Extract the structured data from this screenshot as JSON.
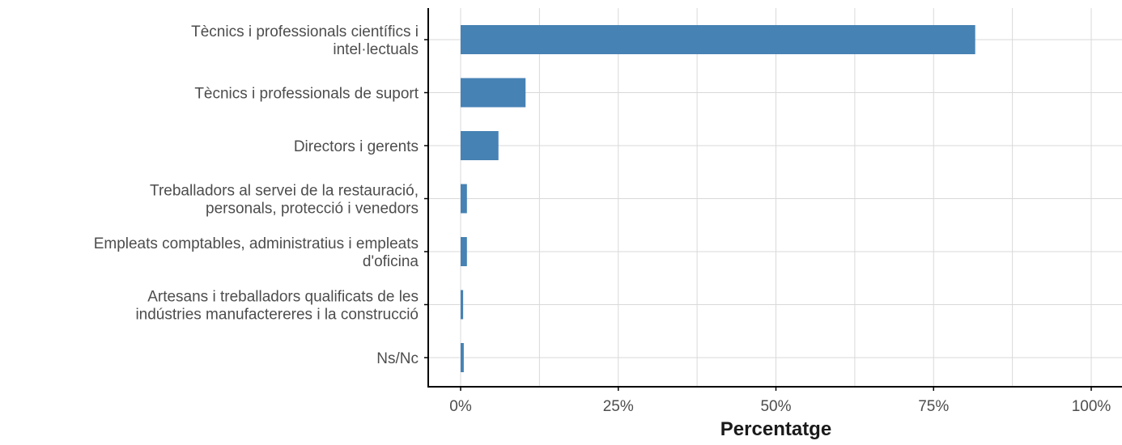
{
  "chart_data": {
    "type": "bar",
    "orientation": "horizontal",
    "categories": [
      [
        "Tècnics i professionals científics i",
        "intel·lectuals"
      ],
      [
        "Tècnics i professionals de suport"
      ],
      [
        "Directors i gerents"
      ],
      [
        "Treballadors al servei de la restauració,",
        "personals, protecció i venedors"
      ],
      [
        "Empleats comptables, administratius i empleats",
        "d'oficina"
      ],
      [
        "Artesans i treballadors qualificats de les",
        "indústries manufactereres i la construcció"
      ],
      [
        "Ns/Nc"
      ]
    ],
    "values": [
      81.6,
      10.3,
      6.0,
      1.0,
      1.0,
      0.4,
      0.5
    ],
    "xlabel": "Percentatge",
    "ylabel": "",
    "xlim": [
      0,
      100
    ],
    "xticks": [
      0,
      25,
      50,
      75,
      100
    ],
    "xtick_labels": [
      "0%",
      "25%",
      "50%",
      "75%",
      "100%"
    ],
    "grid": true,
    "colors": {
      "bar": "#4682b4",
      "grid": "#d9d9d9",
      "axis": "#000000"
    }
  }
}
